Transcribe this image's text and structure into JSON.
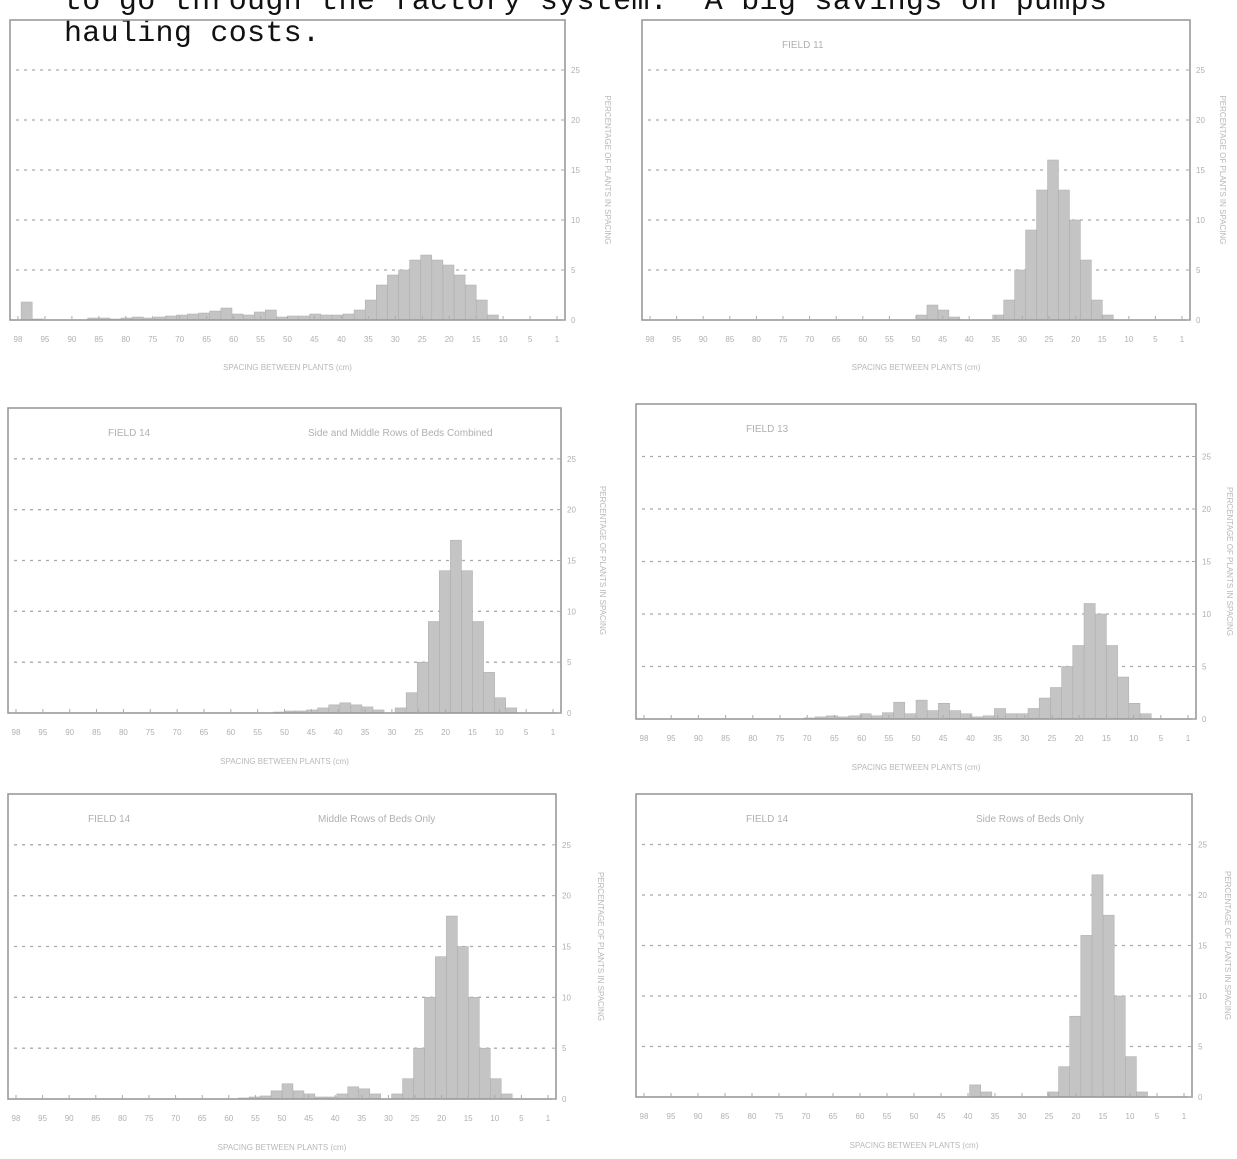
{
  "document": {
    "text_lines": [
      "to go through the factory system.  A big savings on pumps",
      "hauling costs."
    ]
  },
  "chart_data": [
    {
      "type": "bar",
      "panel_title": "",
      "panel_subtitle": "",
      "xlabel": "SPACING BETWEEN PLANTS (cm)",
      "ylabel": "PERCENTAGE OF PLANTS IN SPACING",
      "ylim": [
        0,
        30
      ],
      "y_ticks": [
        "0",
        "5",
        "10",
        "15",
        "20",
        "25"
      ],
      "x_ticks": [
        "98",
        "95",
        "90",
        "85",
        "80",
        "75",
        "70",
        "65",
        "60",
        "55",
        "50",
        "45",
        "40",
        "35",
        "30",
        "25",
        "20",
        "15",
        "10",
        "5",
        "1"
      ],
      "x": [
        1,
        3,
        5,
        7,
        9,
        11,
        13,
        15,
        17,
        19,
        21,
        23,
        25,
        27,
        29,
        31,
        33,
        35,
        37,
        39,
        41,
        43,
        45,
        47,
        49,
        51,
        53,
        55,
        57,
        59,
        61,
        63,
        65,
        67,
        69,
        71,
        73,
        75,
        77,
        79,
        81,
        83,
        85,
        87,
        89,
        91,
        93,
        95,
        97
      ],
      "values": [
        0,
        0,
        0,
        0,
        0,
        0,
        0.5,
        2,
        3.5,
        4.5,
        5.5,
        6,
        6.5,
        6,
        5,
        4.5,
        3.5,
        2,
        1,
        0.6,
        0.5,
        0.5,
        0.6,
        0.4,
        0.4,
        0.3,
        1,
        0.8,
        0.5,
        0.6,
        1.2,
        0.9,
        0.7,
        0.6,
        0.5,
        0.4,
        0.3,
        0.2,
        0.3,
        0.2,
        0.1,
        0.2,
        0.2,
        0,
        0,
        0,
        0,
        0.1,
        1.8
      ],
      "grid": true
    },
    {
      "type": "bar",
      "panel_title": "FIELD 11",
      "panel_subtitle": "",
      "xlabel": "SPACING BETWEEN PLANTS (cm)",
      "ylabel": "PERCENTAGE OF PLANTS IN SPACING",
      "ylim": [
        0,
        30
      ],
      "y_ticks": [
        "0",
        "5",
        "10",
        "15",
        "20",
        "25"
      ],
      "x_ticks": [
        "98",
        "95",
        "90",
        "85",
        "80",
        "75",
        "70",
        "65",
        "60",
        "55",
        "50",
        "45",
        "40",
        "35",
        "30",
        "25",
        "20",
        "15",
        "10",
        "5",
        "1"
      ],
      "x": [
        1,
        3,
        5,
        7,
        9,
        11,
        13,
        15,
        17,
        19,
        21,
        23,
        25,
        27,
        29,
        31,
        33,
        35,
        37,
        39,
        41,
        43,
        45,
        47,
        49
      ],
      "values": [
        0,
        0,
        0,
        0,
        0,
        0,
        0,
        0.5,
        2,
        6,
        10,
        13,
        16,
        13,
        9,
        5,
        2,
        0.5,
        0,
        0,
        0,
        0.3,
        1,
        1.5,
        0.5
      ],
      "grid": true
    },
    {
      "type": "bar",
      "panel_title": "FIELD 14",
      "panel_subtitle": "Side and Middle Rows of Beds Combined",
      "xlabel": "SPACING BETWEEN PLANTS (cm)",
      "ylabel": "PERCENTAGE OF PLANTS IN SPACING",
      "ylim": [
        0,
        30
      ],
      "y_ticks": [
        "0",
        "5",
        "10",
        "15",
        "20",
        "25"
      ],
      "x_ticks": [
        "98",
        "95",
        "90",
        "85",
        "80",
        "75",
        "70",
        "65",
        "60",
        "55",
        "50",
        "45",
        "40",
        "35",
        "30",
        "25",
        "20",
        "15",
        "10",
        "5",
        "1"
      ],
      "x": [
        1,
        3,
        5,
        7,
        9,
        11,
        13,
        15,
        17,
        19,
        21,
        23,
        25,
        27,
        29,
        31,
        33,
        35,
        37,
        39,
        41,
        43,
        45,
        47,
        49,
        51
      ],
      "values": [
        0,
        0,
        0,
        0,
        0.5,
        1.5,
        4,
        9,
        14,
        17,
        14,
        9,
        5,
        2,
        0.5,
        0,
        0.3,
        0.6,
        0.8,
        1,
        0.8,
        0.5,
        0.3,
        0.2,
        0.2,
        0.1
      ],
      "grid": true
    },
    {
      "type": "bar",
      "panel_title": "FIELD 13",
      "panel_subtitle": "",
      "xlabel": "SPACING BETWEEN PLANTS (cm)",
      "ylabel": "PERCENTAGE OF PLANTS IN SPACING",
      "ylim": [
        0,
        30
      ],
      "y_ticks": [
        "0",
        "5",
        "10",
        "15",
        "20",
        "25"
      ],
      "x_ticks": [
        "98",
        "95",
        "90",
        "85",
        "80",
        "75",
        "70",
        "65",
        "60",
        "55",
        "50",
        "45",
        "40",
        "35",
        "30",
        "25",
        "20",
        "15",
        "10",
        "5",
        "1"
      ],
      "x": [
        1,
        3,
        5,
        7,
        9,
        11,
        13,
        15,
        17,
        19,
        21,
        23,
        25,
        27,
        29,
        31,
        33,
        35,
        37,
        39,
        41,
        43,
        45,
        47,
        49,
        51,
        53,
        55,
        57,
        59,
        61,
        63,
        65,
        67,
        69
      ],
      "values": [
        0,
        0,
        0,
        0,
        0.5,
        1.5,
        4,
        7,
        10,
        11,
        7,
        5,
        3,
        2,
        1,
        0.5,
        0.5,
        1,
        0.3,
        0.2,
        0.5,
        0.8,
        1.5,
        0.8,
        1.8,
        0.5,
        1.6,
        0.6,
        0.3,
        0.5,
        0.3,
        0.2,
        0.3,
        0.2,
        0.1
      ],
      "grid": true
    },
    {
      "type": "bar",
      "panel_title": "FIELD 14",
      "panel_subtitle": "Middle Rows of Beds Only",
      "xlabel": "SPACING BETWEEN PLANTS (cm)",
      "ylabel": "PERCENTAGE OF PLANTS IN SPACING",
      "ylim": [
        0,
        30
      ],
      "y_ticks": [
        "0",
        "5",
        "10",
        "15",
        "20",
        "25"
      ],
      "x_ticks": [
        "98",
        "95",
        "90",
        "85",
        "80",
        "75",
        "70",
        "65",
        "60",
        "55",
        "50",
        "45",
        "40",
        "35",
        "30",
        "25",
        "20",
        "15",
        "10",
        "5",
        "1"
      ],
      "x": [
        1,
        3,
        5,
        7,
        9,
        11,
        13,
        15,
        17,
        19,
        21,
        23,
        25,
        27,
        29,
        31,
        33,
        35,
        37,
        39,
        41,
        43,
        45,
        47,
        49,
        51,
        53,
        55,
        57
      ],
      "values": [
        0,
        0,
        0,
        0,
        0.5,
        2,
        5,
        10,
        15,
        18,
        14,
        10,
        5,
        2,
        0.5,
        0,
        0.5,
        1,
        1.2,
        0.5,
        0.2,
        0.2,
        0.5,
        0.8,
        1.5,
        0.8,
        0.3,
        0.2,
        0.1
      ],
      "grid": true
    },
    {
      "type": "bar",
      "panel_title": "FIELD 14",
      "panel_subtitle": "Side Rows of Beds Only",
      "xlabel": "SPACING BETWEEN PLANTS (cm)",
      "ylabel": "PERCENTAGE OF PLANTS IN SPACING",
      "ylim": [
        0,
        30
      ],
      "y_ticks": [
        "0",
        "5",
        "10",
        "15",
        "20",
        "25"
      ],
      "x_ticks": [
        "98",
        "95",
        "90",
        "85",
        "80",
        "75",
        "70",
        "65",
        "60",
        "55",
        "50",
        "45",
        "40",
        "35",
        "30",
        "25",
        "20",
        "15",
        "10",
        "5",
        "1"
      ],
      "x": [
        1,
        3,
        5,
        7,
        9,
        11,
        13,
        15,
        17,
        19,
        21,
        23,
        25,
        27,
        29,
        31,
        33,
        35,
        37,
        39
      ],
      "values": [
        0,
        0,
        0,
        0,
        0.5,
        4,
        10,
        18,
        22,
        16,
        8,
        3,
        0.5,
        0,
        0,
        0,
        0,
        0,
        0.5,
        1.2
      ],
      "grid": true
    }
  ]
}
